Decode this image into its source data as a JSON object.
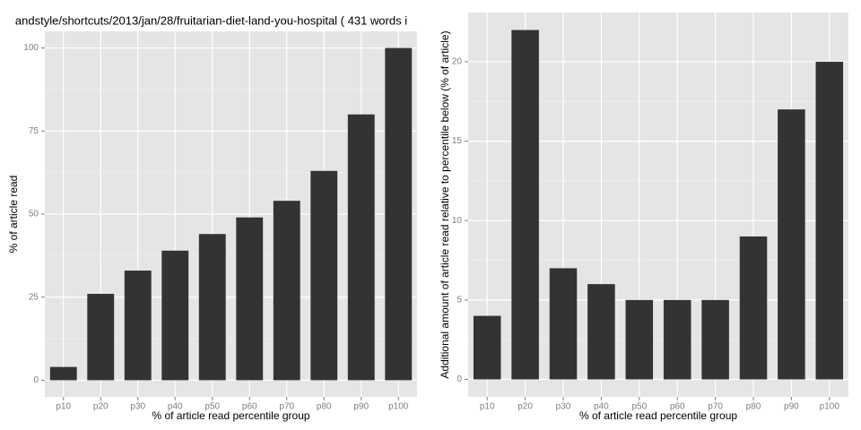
{
  "chart_data": [
    {
      "type": "bar",
      "title": "andstyle/shortcuts/2013/jan/28/fruitarian-diet-land-you-hospital ( 431 words i",
      "x_label": "% of article read percentile group",
      "y_label": "% of article read",
      "categories": [
        "p10",
        "p20",
        "p30",
        "p40",
        "p50",
        "p60",
        "p70",
        "p80",
        "p90",
        "p100"
      ],
      "values": [
        4,
        26,
        33,
        39,
        44,
        49,
        54,
        63,
        80,
        100
      ],
      "color": "#333333",
      "ylim": [
        -5,
        105
      ],
      "yticks": [
        0,
        25,
        50,
        75,
        100
      ],
      "grid": true
    },
    {
      "type": "bar",
      "x_label": "% of article read percentile group",
      "y_label": "Additional amount of article read relative to percentile below (% of article)",
      "categories": [
        "p10",
        "p20",
        "p30",
        "p40",
        "p50",
        "p60",
        "p70",
        "p80",
        "p90",
        "p100"
      ],
      "values": [
        4,
        22,
        7,
        6,
        5,
        5,
        5,
        9,
        17,
        20
      ],
      "color": "#333333",
      "ylim": [
        -1.1,
        23.1
      ],
      "yticks": [
        0,
        5,
        10,
        15,
        20
      ],
      "grid": true
    }
  ]
}
